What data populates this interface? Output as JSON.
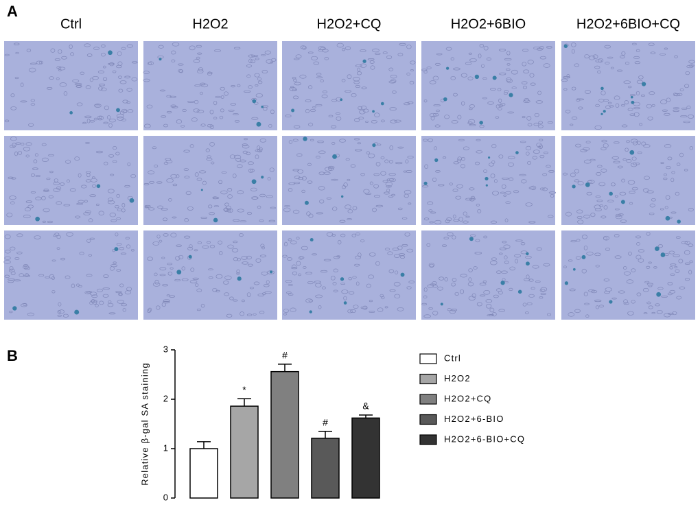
{
  "panel_a": {
    "label": "A",
    "columns": [
      "Ctrl",
      "H2O2",
      "H2O2+CQ",
      "H2O2+6BIO",
      "H2O2+6BIO+CQ"
    ]
  },
  "panel_b": {
    "label": "B"
  },
  "chart_data": {
    "type": "bar",
    "y_label": "Relative β-gal SA staining",
    "categories": [
      "Ctrl",
      "H2O2",
      "H2O2+CQ",
      "H2O2+6-BIO",
      "H2O2+6-BIO+CQ"
    ],
    "values": [
      1.0,
      1.86,
      2.56,
      1.21,
      1.62
    ],
    "errors": [
      0.14,
      0.15,
      0.15,
      0.14,
      0.06
    ],
    "annotations": [
      null,
      "*",
      "#",
      "#",
      "&"
    ],
    "colors": [
      "#ffffff",
      "#a6a6a6",
      "#808080",
      "#595959",
      "#333333"
    ],
    "ylim": [
      0,
      3
    ],
    "yticks": [
      0,
      1,
      2,
      3
    ],
    "legend": "right"
  }
}
